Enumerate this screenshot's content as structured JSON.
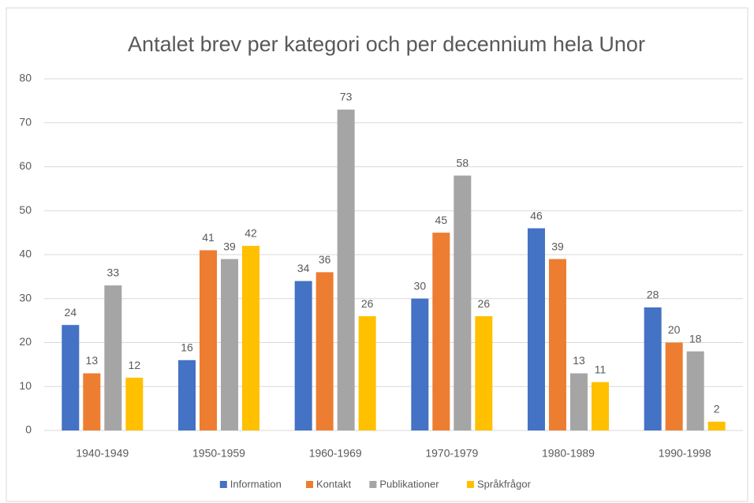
{
  "chart_data": {
    "type": "bar",
    "title": "Antalet brev per kategori och per decennium hela Unor",
    "categories": [
      "1940-1949",
      "1950-1959",
      "1960-1969",
      "1970-1979",
      "1980-1989",
      "1990-1998"
    ],
    "series": [
      {
        "name": "Information",
        "color": "#4472c4",
        "values": [
          24,
          16,
          34,
          30,
          46,
          28
        ]
      },
      {
        "name": "Kontakt",
        "color": "#ed7d31",
        "values": [
          13,
          41,
          36,
          45,
          39,
          20
        ]
      },
      {
        "name": "Publikationer",
        "color": "#a5a5a5",
        "values": [
          33,
          39,
          73,
          58,
          13,
          18
        ]
      },
      {
        "name": "Språkfrågor",
        "color": "#ffc000",
        "values": [
          12,
          42,
          26,
          26,
          11,
          2
        ]
      }
    ],
    "ylim": [
      0,
      80
    ],
    "yticks": [
      0,
      10,
      20,
      30,
      40,
      50,
      60,
      70,
      80
    ],
    "grid": true,
    "legend": "bottom"
  }
}
